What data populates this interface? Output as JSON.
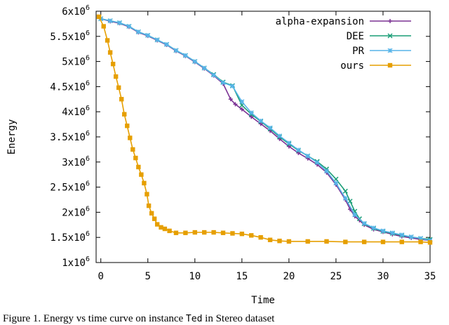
{
  "chart_data": {
    "type": "line",
    "xlabel": "Time",
    "ylabel": "Energy",
    "xlim": [
      -0.5,
      35
    ],
    "ylim": [
      1000000,
      6000000
    ],
    "x_ticks": [
      0,
      5,
      10,
      15,
      20,
      25,
      30,
      35
    ],
    "x_tick_labels": [
      "0",
      "5",
      "10",
      "15",
      "20",
      "25",
      "30",
      "35"
    ],
    "y_ticks": [
      1000000,
      1500000,
      2000000,
      2500000,
      3000000,
      3500000,
      4000000,
      4500000,
      5000000,
      5500000,
      6000000
    ],
    "y_tick_labels": [
      {
        "mantissa": "1x10",
        "exp": "6"
      },
      {
        "mantissa": "1.5x10",
        "exp": "6"
      },
      {
        "mantissa": "2x10",
        "exp": "6"
      },
      {
        "mantissa": "2.5x10",
        "exp": "6"
      },
      {
        "mantissa": "3x10",
        "exp": "6"
      },
      {
        "mantissa": "3.5x10",
        "exp": "6"
      },
      {
        "mantissa": "4x10",
        "exp": "6"
      },
      {
        "mantissa": "4.5x10",
        "exp": "6"
      },
      {
        "mantissa": "5x10",
        "exp": "6"
      },
      {
        "mantissa": "5.5x10",
        "exp": "6"
      },
      {
        "mantissa": "6x10",
        "exp": "6"
      }
    ],
    "grid": false,
    "legend_position": "top-right",
    "series": [
      {
        "name": "alpha-expansion",
        "color": "#7b3294",
        "marker": "plus",
        "points": [
          [
            0,
            5850000
          ],
          [
            1,
            5800000
          ],
          [
            2,
            5760000
          ],
          [
            3,
            5690000
          ],
          [
            4,
            5580000
          ],
          [
            5,
            5510000
          ],
          [
            6,
            5420000
          ],
          [
            7,
            5330000
          ],
          [
            8,
            5210000
          ],
          [
            9,
            5110000
          ],
          [
            10,
            4990000
          ],
          [
            11,
            4860000
          ],
          [
            12,
            4720000
          ],
          [
            13,
            4560000
          ],
          [
            13.8,
            4250000
          ],
          [
            14.3,
            4150000
          ],
          [
            15,
            4050000
          ],
          [
            16,
            3900000
          ],
          [
            17,
            3760000
          ],
          [
            18,
            3620000
          ],
          [
            19,
            3460000
          ],
          [
            20,
            3310000
          ],
          [
            21,
            3180000
          ],
          [
            22,
            3070000
          ],
          [
            23,
            2950000
          ],
          [
            24,
            2790000
          ],
          [
            25,
            2550000
          ],
          [
            26,
            2250000
          ],
          [
            26.5,
            2060000
          ],
          [
            27,
            1920000
          ],
          [
            27.5,
            1840000
          ],
          [
            28,
            1750000
          ],
          [
            29,
            1660000
          ],
          [
            30,
            1610000
          ],
          [
            31,
            1560000
          ],
          [
            32,
            1520000
          ],
          [
            33,
            1490000
          ],
          [
            34,
            1460000
          ],
          [
            35,
            1440000
          ]
        ]
      },
      {
        "name": "DEE",
        "color": "#1a9e77",
        "marker": "cross",
        "points": [
          [
            0,
            5850000
          ],
          [
            1,
            5810000
          ],
          [
            2,
            5770000
          ],
          [
            3,
            5700000
          ],
          [
            4,
            5590000
          ],
          [
            5,
            5520000
          ],
          [
            6,
            5430000
          ],
          [
            7,
            5340000
          ],
          [
            8,
            5220000
          ],
          [
            9,
            5120000
          ],
          [
            10,
            5000000
          ],
          [
            11,
            4870000
          ],
          [
            12,
            4740000
          ],
          [
            13,
            4590000
          ],
          [
            14,
            4520000
          ],
          [
            15,
            4130000
          ],
          [
            16,
            3950000
          ],
          [
            17,
            3810000
          ],
          [
            18,
            3660000
          ],
          [
            19,
            3500000
          ],
          [
            20,
            3360000
          ],
          [
            21,
            3230000
          ],
          [
            22,
            3120000
          ],
          [
            23,
            3010000
          ],
          [
            24,
            2860000
          ],
          [
            25,
            2660000
          ],
          [
            26,
            2420000
          ],
          [
            26.5,
            2220000
          ],
          [
            27,
            2020000
          ],
          [
            27.5,
            1870000
          ],
          [
            28,
            1770000
          ],
          [
            29,
            1680000
          ],
          [
            30,
            1620000
          ],
          [
            31,
            1580000
          ],
          [
            32,
            1540000
          ],
          [
            33,
            1510000
          ],
          [
            34,
            1480000
          ],
          [
            35,
            1460000
          ]
        ]
      },
      {
        "name": "PR",
        "color": "#56b4e9",
        "marker": "star",
        "points": [
          [
            0,
            5850000
          ],
          [
            1,
            5810000
          ],
          [
            2,
            5770000
          ],
          [
            3,
            5700000
          ],
          [
            4,
            5590000
          ],
          [
            5,
            5520000
          ],
          [
            6,
            5430000
          ],
          [
            7,
            5340000
          ],
          [
            8,
            5220000
          ],
          [
            9,
            5120000
          ],
          [
            10,
            5000000
          ],
          [
            11,
            4870000
          ],
          [
            12,
            4730000
          ],
          [
            13,
            4580000
          ],
          [
            14,
            4510000
          ],
          [
            15,
            4200000
          ],
          [
            16,
            3980000
          ],
          [
            17,
            3820000
          ],
          [
            18,
            3680000
          ],
          [
            19,
            3520000
          ],
          [
            20,
            3380000
          ],
          [
            21,
            3240000
          ],
          [
            22,
            3120000
          ],
          [
            23,
            2990000
          ],
          [
            24,
            2820000
          ],
          [
            25,
            2580000
          ],
          [
            26,
            2280000
          ],
          [
            27,
            1950000
          ],
          [
            28,
            1780000
          ],
          [
            29,
            1690000
          ],
          [
            30,
            1630000
          ],
          [
            31,
            1590000
          ],
          [
            32,
            1550000
          ],
          [
            33,
            1510000
          ],
          [
            34,
            1480000
          ],
          [
            35,
            1440000
          ]
        ]
      },
      {
        "name": "ours",
        "color": "#e69f00",
        "marker": "square",
        "points": [
          [
            -0.2,
            5890000
          ],
          [
            0.3,
            5700000
          ],
          [
            0.7,
            5420000
          ],
          [
            1.0,
            5180000
          ],
          [
            1.3,
            4950000
          ],
          [
            1.6,
            4700000
          ],
          [
            1.9,
            4480000
          ],
          [
            2.2,
            4250000
          ],
          [
            2.5,
            3950000
          ],
          [
            2.8,
            3720000
          ],
          [
            3.1,
            3480000
          ],
          [
            3.4,
            3250000
          ],
          [
            3.7,
            3080000
          ],
          [
            4.0,
            2900000
          ],
          [
            4.3,
            2750000
          ],
          [
            4.6,
            2580000
          ],
          [
            4.9,
            2360000
          ],
          [
            5.1,
            2130000
          ],
          [
            5.4,
            1980000
          ],
          [
            5.7,
            1870000
          ],
          [
            6.0,
            1760000
          ],
          [
            6.4,
            1700000
          ],
          [
            6.8,
            1670000
          ],
          [
            7.3,
            1630000
          ],
          [
            8,
            1590000
          ],
          [
            9,
            1590000
          ],
          [
            10,
            1600000
          ],
          [
            11,
            1600000
          ],
          [
            12,
            1600000
          ],
          [
            13,
            1590000
          ],
          [
            14,
            1580000
          ],
          [
            15,
            1570000
          ],
          [
            16,
            1540000
          ],
          [
            17,
            1500000
          ],
          [
            18,
            1450000
          ],
          [
            19,
            1430000
          ],
          [
            20,
            1420000
          ],
          [
            22,
            1420000
          ],
          [
            24,
            1420000
          ],
          [
            26,
            1410000
          ],
          [
            28,
            1410000
          ],
          [
            30,
            1410000
          ],
          [
            32,
            1410000
          ],
          [
            34,
            1410000
          ],
          [
            35,
            1400000
          ]
        ]
      }
    ]
  },
  "caption": {
    "prefix": "Figure 1. Energy vs time curve on instance ",
    "code": "Ted",
    "suffix": " in Stereo dataset"
  }
}
